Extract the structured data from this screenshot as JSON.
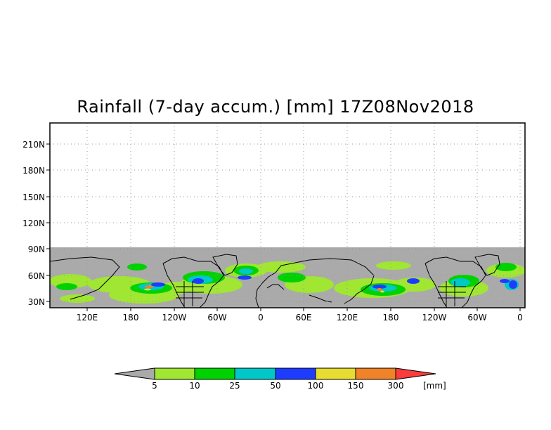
{
  "title": "Rainfall (7-day accum.) [mm] 17Z08Nov2018",
  "map": {
    "y_ticks": [
      "210N",
      "180N",
      "150N",
      "120N",
      "90N",
      "60N",
      "30N"
    ],
    "x_ticks": [
      "120E",
      "180",
      "120W",
      "60W",
      "0",
      "60E",
      "120E",
      "180",
      "120W",
      "60W",
      "0"
    ],
    "no_data_color": "#aaaaaa",
    "coastline_color": "#000000",
    "grid": "dotted"
  },
  "colorbar": {
    "unit": "[mm]",
    "thresholds": [
      "5",
      "10",
      "25",
      "50",
      "100",
      "150",
      "300"
    ],
    "colors": [
      "#aaaaaa",
      "#a0e632",
      "#00d200",
      "#00c8c8",
      "#1e3cff",
      "#e6dc32",
      "#f08228",
      "#fa3c3c"
    ]
  }
}
